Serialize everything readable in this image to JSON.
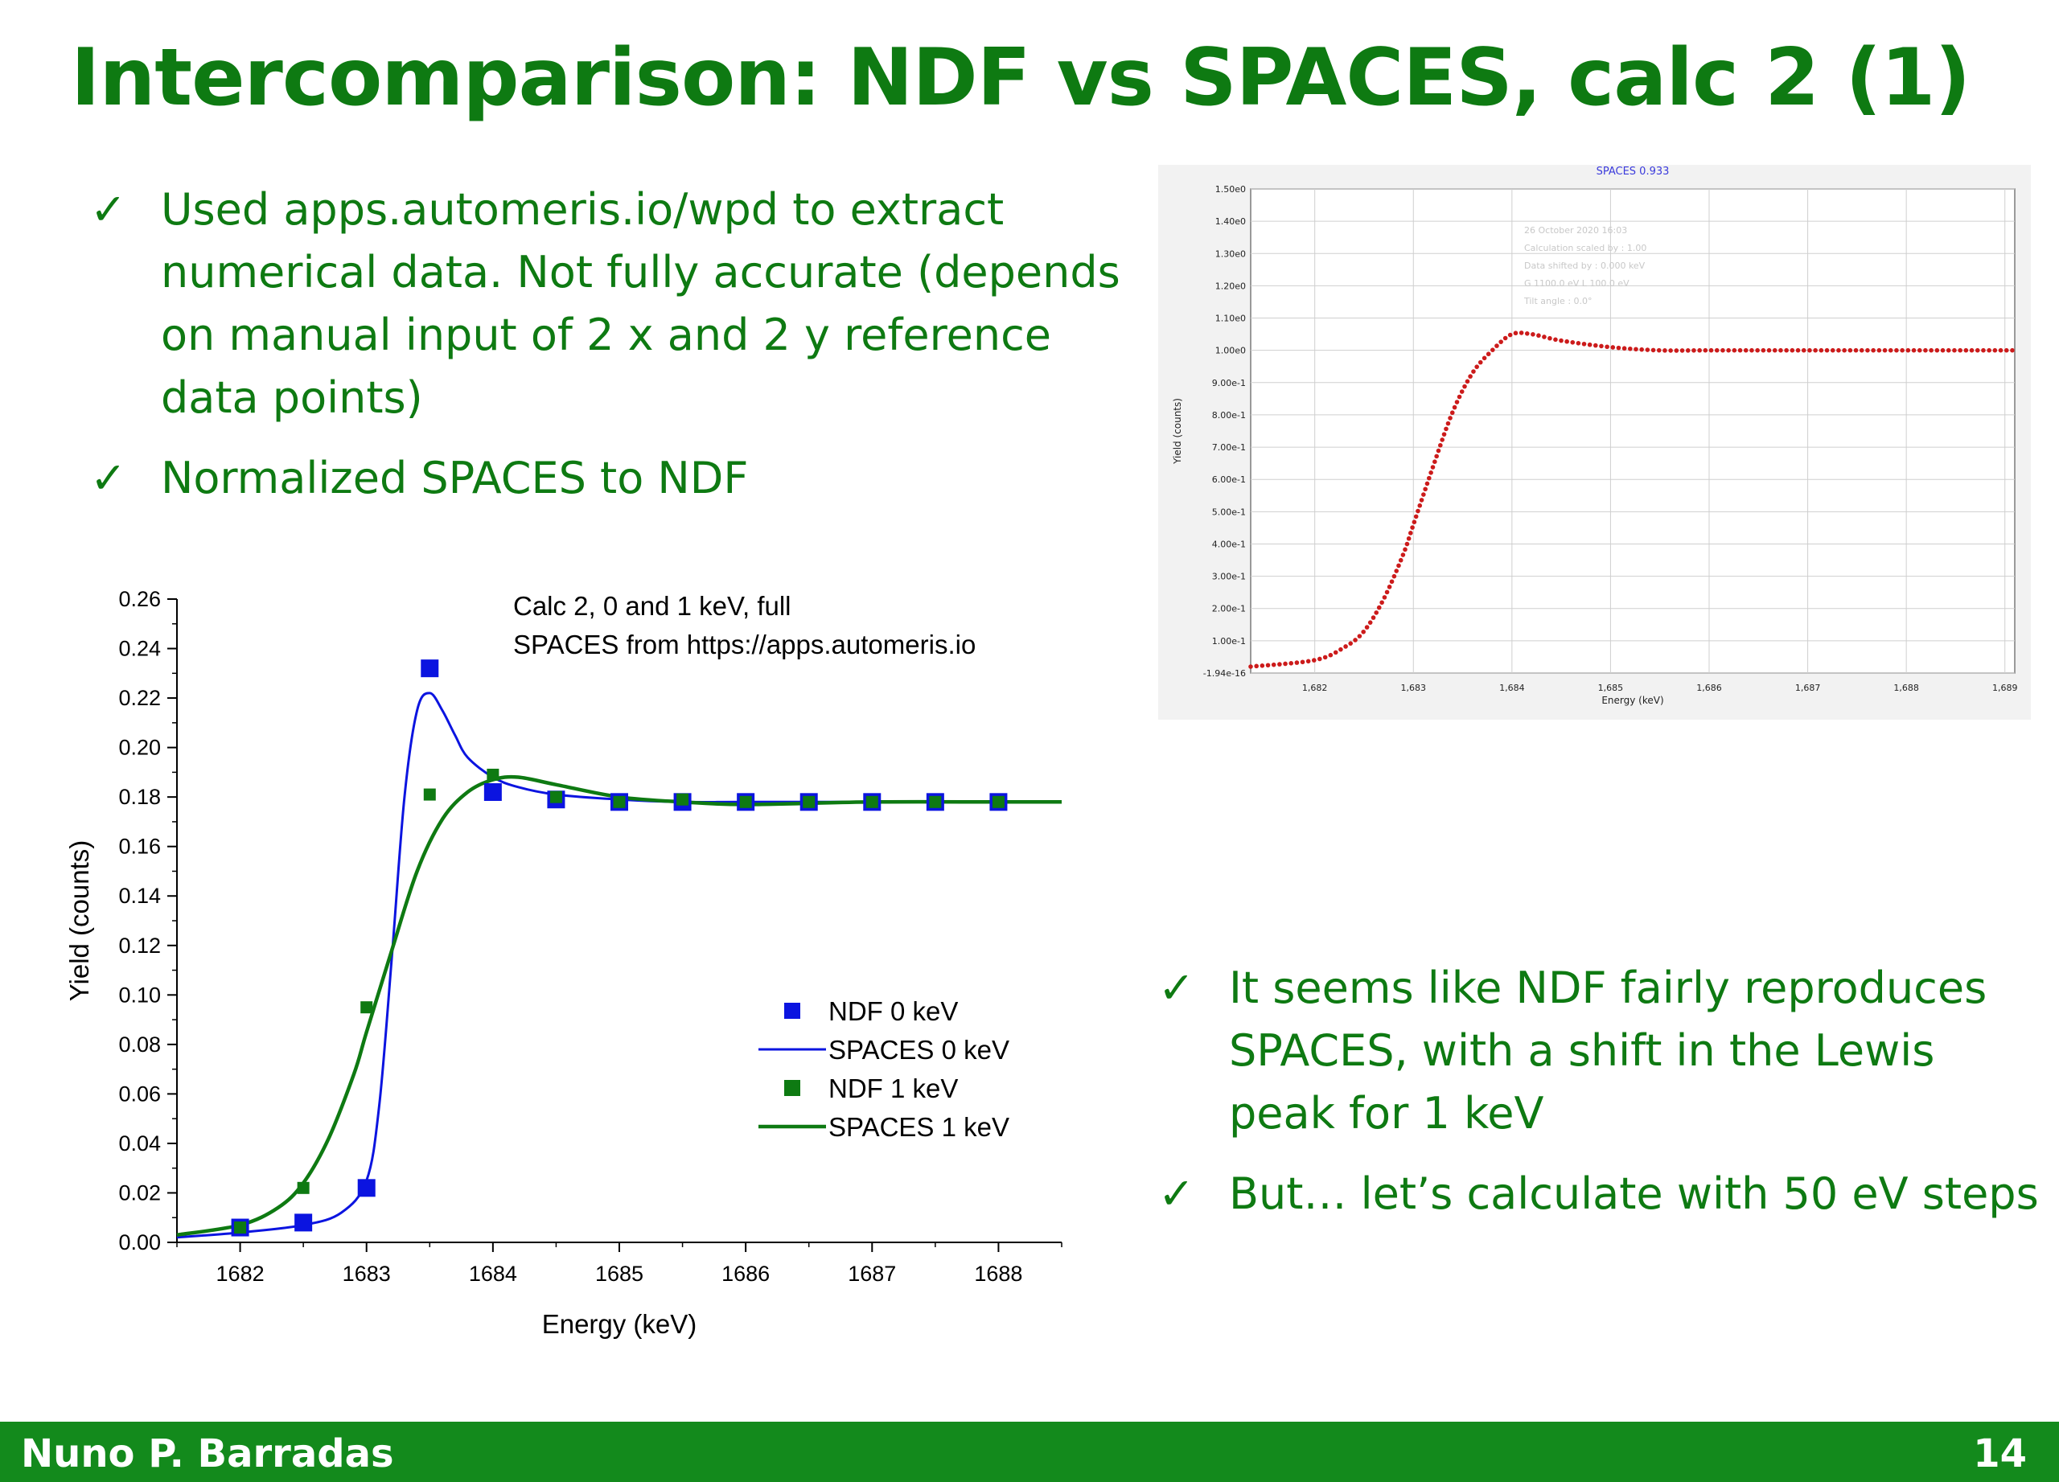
{
  "slide": {
    "title": "Intercomparison: NDF vs SPACES, calc 2 (1)",
    "check_glyph": "✓",
    "bullets_top": [
      "Used apps.automeris.io/wpd to extract numerical data. Not fully accurate (depends on manual input of 2 x and 2 y reference data points)",
      "Normalized SPACES to NDF"
    ],
    "bullets_bottom": [
      "It seems like NDF fairly reproduces SPACES, with a shift in the Lewis peak for 1 keV",
      "But… let’s calculate with 50 eV steps"
    ],
    "footer_name": "Nuno P. Barradas",
    "page_number": "14",
    "colors": {
      "title": "#0e7a12",
      "footer": "#138a1c",
      "ndf0": "#0b14e0",
      "ndf1": "#0e7a12",
      "inset_curve": "#cc1b1b"
    }
  },
  "chart_data": [
    {
      "type": "line",
      "annotation": [
        "Calc 2, 0 and 1 keV, full",
        "SPACES from https://apps.automeris.io"
      ],
      "xlabel": "Energy (keV)",
      "ylabel": "Yield (counts)",
      "xlim": [
        1681.5,
        1688.5
      ],
      "ylim": [
        0,
        0.26
      ],
      "xticks": [
        1682,
        1683,
        1684,
        1685,
        1686,
        1687,
        1688
      ],
      "yticks": [
        0.0,
        0.02,
        0.04,
        0.06,
        0.08,
        0.1,
        0.12,
        0.14,
        0.16,
        0.18,
        0.2,
        0.22,
        0.24,
        0.26
      ],
      "legend_position": "bottom-right",
      "series": [
        {
          "name": "NDF 0 keV",
          "kind": "scatter",
          "marker": "square-large",
          "color": "#0b14e0",
          "x": [
            1682,
            1682.5,
            1683,
            1683.5,
            1684,
            1684.5,
            1685,
            1685.5,
            1686,
            1686.5,
            1687,
            1687.5,
            1688
          ],
          "y": [
            0.006,
            0.008,
            0.022,
            0.232,
            0.182,
            0.179,
            0.178,
            0.178,
            0.178,
            0.178,
            0.178,
            0.178,
            0.178
          ]
        },
        {
          "name": "SPACES 0 keV",
          "kind": "line",
          "color": "#0b14e0",
          "x": [
            1681.5,
            1682.0,
            1682.5,
            1682.8,
            1683.0,
            1683.1,
            1683.2,
            1683.3,
            1683.4,
            1683.5,
            1683.6,
            1683.7,
            1683.8,
            1684.0,
            1684.2,
            1684.5,
            1685.0,
            1685.5,
            1686.0,
            1687.0,
            1688.0,
            1688.5
          ],
          "y": [
            0.002,
            0.004,
            0.007,
            0.012,
            0.025,
            0.055,
            0.115,
            0.18,
            0.215,
            0.222,
            0.215,
            0.205,
            0.196,
            0.188,
            0.184,
            0.181,
            0.179,
            0.178,
            0.178,
            0.178,
            0.178,
            0.178
          ]
        },
        {
          "name": "NDF 1 keV",
          "kind": "scatter",
          "marker": "square-small",
          "color": "#0e7a12",
          "x": [
            1682,
            1682.5,
            1683,
            1683.5,
            1684,
            1684.5,
            1685,
            1685.5,
            1686,
            1686.5,
            1687,
            1687.5,
            1688
          ],
          "y": [
            0.006,
            0.022,
            0.095,
            0.181,
            0.189,
            0.18,
            0.178,
            0.179,
            0.178,
            0.178,
            0.178,
            0.178,
            0.178
          ]
        },
        {
          "name": "SPACES 1 keV",
          "kind": "line",
          "color": "#0e7a12",
          "x": [
            1681.5,
            1682.0,
            1682.3,
            1682.5,
            1682.7,
            1682.9,
            1683.0,
            1683.2,
            1683.4,
            1683.6,
            1683.8,
            1684.0,
            1684.2,
            1684.5,
            1685.0,
            1685.5,
            1686.0,
            1687.0,
            1688.0,
            1688.5
          ],
          "y": [
            0.003,
            0.007,
            0.014,
            0.024,
            0.042,
            0.068,
            0.085,
            0.118,
            0.15,
            0.171,
            0.182,
            0.187,
            0.188,
            0.185,
            0.18,
            0.178,
            0.177,
            0.178,
            0.178,
            0.178
          ]
        }
      ]
    },
    {
      "type": "scatter",
      "title": "SPACES 0.933",
      "info_lines": [
        "26 October 2020 16:03",
        "Calculation scaled by : 1.00",
        "Data shifted by : 0.000 keV",
        "G 1100.0 eV  L 100.0 eV",
        "Tilt angle : 0.0°"
      ],
      "xlabel": "Energy (keV)",
      "ylabel": "Yield (counts)",
      "xlim": [
        1681.35,
        1689.1
      ],
      "ylim": [
        0,
        1.5
      ],
      "xtick_values": [
        1682,
        1683,
        1684,
        1685,
        1686,
        1687,
        1688,
        1689
      ],
      "xtick_labels": [
        "1,682",
        "1,683",
        "1,684",
        "1,685",
        "1,686",
        "1,687",
        "1,688",
        "1,689"
      ],
      "ytick_values": [
        0,
        0.1,
        0.2,
        0.3,
        0.4,
        0.5,
        0.6,
        0.7,
        0.8,
        0.9,
        1.0,
        1.1,
        1.2,
        1.3,
        1.4,
        1.5
      ],
      "ytick_labels": [
        "-1.94e-16",
        "1.00e-1",
        "2.00e-1",
        "3.00e-1",
        "4.00e-1",
        "5.00e-1",
        "6.00e-1",
        "7.00e-1",
        "8.00e-1",
        "9.00e-1",
        "1.00e0",
        "1.10e0",
        "1.20e0",
        "1.30e0",
        "1.40e0",
        "1.50e0"
      ],
      "grid": true,
      "color": "#cc1b1b",
      "curve_x": [
        1681.35,
        1682.0,
        1682.3,
        1682.5,
        1682.7,
        1682.9,
        1683.0,
        1683.2,
        1683.4,
        1683.6,
        1683.8,
        1684.0,
        1684.2,
        1684.5,
        1685.0,
        1685.5,
        1686.0,
        1687.0,
        1688.0,
        1689.1
      ],
      "curve_y": [
        0.02,
        0.04,
        0.08,
        0.13,
        0.23,
        0.37,
        0.46,
        0.64,
        0.81,
        0.93,
        1.0,
        1.05,
        1.05,
        1.03,
        1.01,
        1.0,
        1.0,
        1.0,
        1.0,
        1.0
      ]
    }
  ]
}
